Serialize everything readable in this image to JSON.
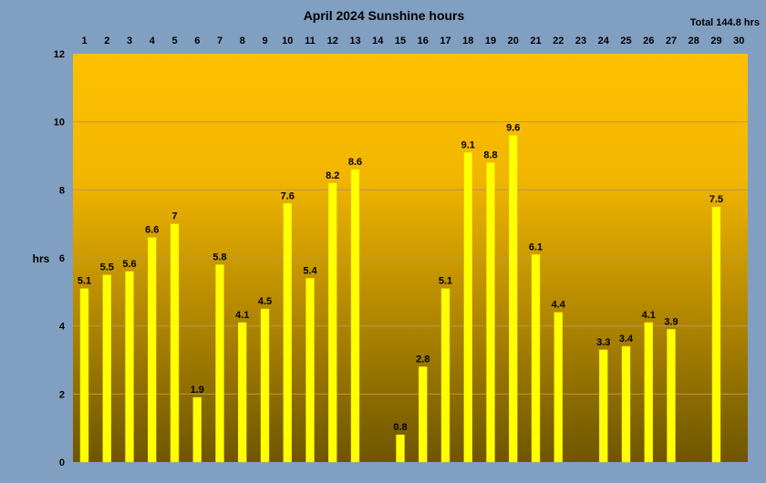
{
  "chart_data": {
    "type": "bar",
    "title": "April 2024 Sunshine hours",
    "total_label": "Total 144.8 hrs",
    "ylabel": "hrs",
    "ylim": [
      0,
      12
    ],
    "yticks": [
      0,
      2,
      4,
      6,
      8,
      10,
      12
    ],
    "grid": true,
    "categories": [
      "1",
      "2",
      "3",
      "4",
      "5",
      "6",
      "7",
      "8",
      "9",
      "10",
      "11",
      "12",
      "13",
      "14",
      "15",
      "16",
      "17",
      "18",
      "19",
      "20",
      "21",
      "22",
      "23",
      "24",
      "25",
      "26",
      "27",
      "28",
      "29",
      "30"
    ],
    "values": [
      5.1,
      5.5,
      5.6,
      6.6,
      7,
      1.9,
      5.8,
      4.1,
      4.5,
      7.6,
      5.4,
      8.2,
      8.6,
      0,
      0.8,
      2.8,
      5.1,
      9.1,
      8.8,
      9.6,
      6.1,
      4.4,
      0,
      3.3,
      3.4,
      4.1,
      3.9,
      0,
      7.5,
      0
    ],
    "data_labels": [
      "5.1",
      "5.5",
      "5.6",
      "6.6",
      "7",
      "1.9",
      "5.8",
      "4.1",
      "4.5",
      "7.6",
      "5.4",
      "8.2",
      "8.6",
      "",
      "0.8",
      "2.8",
      "5.1",
      "9.1",
      "8.8",
      "9.6",
      "6.1",
      "4.4",
      "",
      "3.3",
      "3.4",
      "4.1",
      "3.9",
      "",
      "7.5",
      ""
    ],
    "colors": {
      "page_background": "#809fc1",
      "plot_gradient_top": "#ffc000",
      "plot_gradient_bottom": "#6e5600",
      "bar_fill": "#ffff00",
      "bar_stroke": "#e0e000",
      "grid": "#b89a50"
    }
  }
}
